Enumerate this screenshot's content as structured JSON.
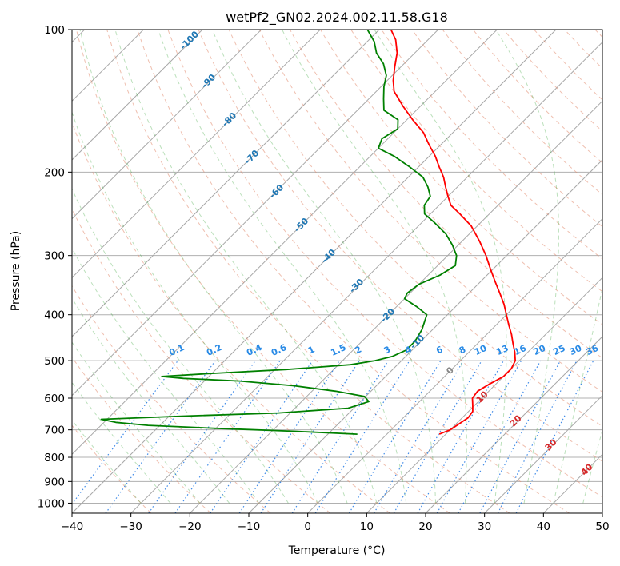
{
  "chart_data": {
    "type": "line",
    "title": "wetPf2_GN02.2024.002.11.58.G18",
    "xlabel": "Temperature (°C)",
    "ylabel": "Pressure (hPa)",
    "xlim": [
      -40,
      50
    ],
    "ylim": [
      1050,
      100
    ],
    "y_scale": "log",
    "x_ticks": [
      "−40",
      "−30",
      "−20",
      "−10",
      "0",
      "10",
      "20",
      "30",
      "40",
      "50"
    ],
    "y_ticks": [
      "100",
      "200",
      "300",
      "400",
      "500",
      "600",
      "700",
      "800",
      "900",
      "1000"
    ],
    "series": [
      {
        "color": "#ff0000",
        "x_units": "°C (skewed axis, values read from isotherms)",
        "points": [
          [
            715,
            8.9
          ],
          [
            700,
            10.0
          ],
          [
            680,
            10.5
          ],
          [
            660,
            11.0
          ],
          [
            640,
            10.7
          ],
          [
            620,
            9.6
          ],
          [
            600,
            8.4
          ],
          [
            580,
            8.1
          ],
          [
            560,
            8.9
          ],
          [
            540,
            10.0
          ],
          [
            520,
            10.0
          ],
          [
            500,
            9.3
          ],
          [
            480,
            7.8
          ],
          [
            460,
            6.0
          ],
          [
            440,
            4.2
          ],
          [
            420,
            2.1
          ],
          [
            400,
            0.0
          ],
          [
            380,
            -2.2
          ],
          [
            360,
            -4.8
          ],
          [
            340,
            -7.6
          ],
          [
            320,
            -10.5
          ],
          [
            300,
            -13.5
          ],
          [
            280,
            -17.0
          ],
          [
            260,
            -21.0
          ],
          [
            245,
            -25.0
          ],
          [
            235,
            -28.0
          ],
          [
            225,
            -30.0
          ],
          [
            215,
            -32.0
          ],
          [
            205,
            -34.0
          ],
          [
            195,
            -36.5
          ],
          [
            185,
            -39.0
          ],
          [
            175,
            -42.0
          ],
          [
            165,
            -45.0
          ],
          [
            155,
            -49.0
          ],
          [
            145,
            -53.0
          ],
          [
            135,
            -57.0
          ],
          [
            128,
            -59.0
          ],
          [
            120,
            -61.0
          ],
          [
            112,
            -63.0
          ],
          [
            105,
            -65.5
          ],
          [
            100,
            -68.0
          ]
        ]
      },
      {
        "color": "#008000",
        "x_units": "°C (skewed axis, values read from isotherms)",
        "points": [
          [
            715,
            -5.0
          ],
          [
            705,
            -16.0
          ],
          [
            695,
            -30.0
          ],
          [
            685,
            -42.0
          ],
          [
            675,
            -48.0
          ],
          [
            665,
            -51.0
          ],
          [
            655,
            -38.0
          ],
          [
            645,
            -22.0
          ],
          [
            630,
            -11.0
          ],
          [
            610,
            -8.6
          ],
          [
            595,
            -10.2
          ],
          [
            580,
            -16.0
          ],
          [
            565,
            -24.0
          ],
          [
            552,
            -34.0
          ],
          [
            545,
            -44.0
          ],
          [
            540,
            -48.0
          ],
          [
            532,
            -40.0
          ],
          [
            522,
            -28.0
          ],
          [
            510,
            -18.0
          ],
          [
            500,
            -14.5
          ],
          [
            490,
            -12.3
          ],
          [
            475,
            -11.0
          ],
          [
            455,
            -11.0
          ],
          [
            430,
            -11.8
          ],
          [
            400,
            -13.5
          ],
          [
            385,
            -16.5
          ],
          [
            370,
            -20.0
          ],
          [
            360,
            -20.5
          ],
          [
            345,
            -20.0
          ],
          [
            330,
            -18.0
          ],
          [
            315,
            -17.0
          ],
          [
            300,
            -18.5
          ],
          [
            285,
            -21.0
          ],
          [
            270,
            -24.0
          ],
          [
            255,
            -28.0
          ],
          [
            245,
            -31.0
          ],
          [
            235,
            -32.5
          ],
          [
            225,
            -33.0
          ],
          [
            215,
            -35.0
          ],
          [
            205,
            -37.5
          ],
          [
            195,
            -41.5
          ],
          [
            185,
            -46.0
          ],
          [
            178,
            -50.0
          ],
          [
            170,
            -51.0
          ],
          [
            162,
            -50.0
          ],
          [
            155,
            -51.5
          ],
          [
            148,
            -55.5
          ],
          [
            140,
            -57.5
          ],
          [
            132,
            -59.5
          ],
          [
            125,
            -61.0
          ],
          [
            118,
            -63.5
          ],
          [
            112,
            -66.5
          ],
          [
            106,
            -68.8
          ],
          [
            100,
            -72.0
          ]
        ]
      }
    ],
    "isotherm_labels": [
      "-100",
      "-90",
      "-80",
      "-70",
      "-60",
      "-50",
      "-40",
      "-30",
      "-20",
      "-10"
    ],
    "mixing_ratio_labels": [
      "0.1",
      "0.2",
      "0.4",
      "0.6",
      "1",
      "1.5",
      "2",
      "3",
      "4",
      "6",
      "8",
      "10",
      "13",
      "16",
      "20",
      "25",
      "30",
      "36"
    ],
    "dry_adiabat_labels": [
      "0",
      "10",
      "20",
      "30",
      "40"
    ],
    "background": {
      "dry_adiabat_color": "#e28a6d",
      "moist_adiabat_color": "#2ca02c",
      "mixing_ratio_color": "#1f77e4",
      "isotherm_color": "#888888",
      "grid": true
    }
  }
}
